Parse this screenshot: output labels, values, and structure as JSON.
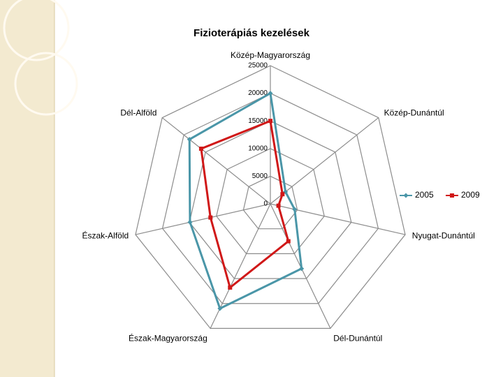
{
  "chart_data": {
    "type": "radar",
    "title": "Fizioterápiás kezelések",
    "categories": [
      "Közép-Magyarország",
      "Közép-Dunántúl",
      "Nyugat-Dunántúl",
      "Dél-Dunántúl",
      "Észak-Magyarország",
      "Észak-Alföld",
      "Dél-Alföld"
    ],
    "series": [
      {
        "name": "2005",
        "color": "#4a96a8",
        "values": [
          20000,
          3500,
          4500,
          13000,
          21000,
          14900,
          18700
        ]
      },
      {
        "name": "2009",
        "color": "#d01818",
        "values": [
          15000,
          2800,
          1500,
          7500,
          16800,
          11100,
          16000
        ]
      }
    ],
    "ylim": [
      0,
      25000
    ],
    "yticks": [
      0,
      5000,
      10000,
      15000,
      20000,
      25000
    ],
    "grid": true,
    "legend": "right"
  }
}
